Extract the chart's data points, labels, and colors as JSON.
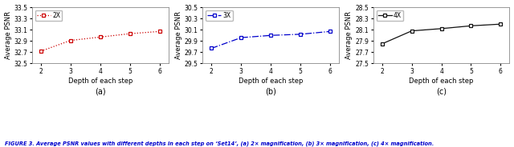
{
  "x": [
    2,
    3,
    4,
    5,
    6
  ],
  "y2x": [
    32.72,
    32.91,
    32.97,
    33.03,
    33.07
  ],
  "y3x": [
    29.77,
    29.96,
    30.0,
    30.02,
    30.07
  ],
  "y4x": [
    27.85,
    28.08,
    28.12,
    28.17,
    28.2
  ],
  "color2x": "#cc0000",
  "color3x": "#0000cc",
  "color4x": "#111111",
  "ylim2x": [
    32.5,
    33.5
  ],
  "ylim3x": [
    29.5,
    30.5
  ],
  "ylim4x": [
    27.5,
    28.5
  ],
  "yticks2x": [
    32.5,
    32.7,
    32.9,
    33.1,
    33.3,
    33.5
  ],
  "yticks3x": [
    29.5,
    29.7,
    29.9,
    30.1,
    30.3,
    30.5
  ],
  "yticks4x": [
    27.5,
    27.7,
    27.9,
    28.1,
    28.3,
    28.5
  ],
  "xlabel": "Depth of each step",
  "ylabel": "Average PSNR",
  "label2x": "2X",
  "label3x": "3X",
  "label4x": "4X",
  "caption": "FIGURE 3. Average PSNR values with different depths in each step on ‘Set14’, (a) 2× magnification, (b) 3× magnification, (c) 4× magnification.",
  "sub_a": "(a)",
  "sub_b": "(b)",
  "sub_c": "(c)",
  "linestyle2x": "dotted",
  "linestyle3x": "dashdot",
  "linestyle4x": "solid"
}
